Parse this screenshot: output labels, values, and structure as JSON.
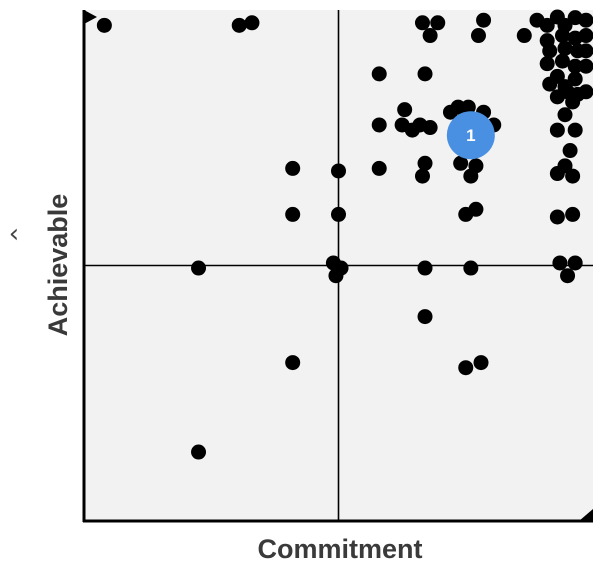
{
  "chart_data": {
    "type": "scatter",
    "xlabel": "Commitment",
    "ylabel": "Achievable",
    "xlim": [
      0,
      100
    ],
    "ylim": [
      0,
      100
    ],
    "quadrant_lines": {
      "x": 50,
      "y": 50
    },
    "y_expand_glyph": "‹",
    "colors": {
      "point": "#000000",
      "plot_background": "#f2f2f2",
      "axis": "#000000",
      "marker": "#4a90e2"
    },
    "highlight_marker": {
      "label": "1",
      "x": 76,
      "y": 75.5
    },
    "points": [
      [
        4,
        97
      ],
      [
        30.5,
        97
      ],
      [
        33,
        97.5
      ],
      [
        66.5,
        97.5
      ],
      [
        69.5,
        97.5
      ],
      [
        68,
        95
      ],
      [
        78.5,
        98
      ],
      [
        77.5,
        95
      ],
      [
        86.5,
        95
      ],
      [
        89,
        98
      ],
      [
        91,
        97
      ],
      [
        93,
        99
      ],
      [
        94.5,
        97
      ],
      [
        96.5,
        98.5
      ],
      [
        99,
        98
      ],
      [
        91,
        94
      ],
      [
        94,
        95
      ],
      [
        96.5,
        94.5
      ],
      [
        99,
        95
      ],
      [
        91.5,
        92
      ],
      [
        94.5,
        92.5
      ],
      [
        97,
        92
      ],
      [
        99,
        92
      ],
      [
        94,
        90
      ],
      [
        96.5,
        89
      ],
      [
        99,
        89
      ],
      [
        91,
        89.5
      ],
      [
        93,
        87
      ],
      [
        96.5,
        86.5
      ],
      [
        91.5,
        85.5
      ],
      [
        94.5,
        85
      ],
      [
        95,
        84
      ],
      [
        97,
        83.5
      ],
      [
        99,
        84
      ],
      [
        93,
        83
      ],
      [
        96,
        82
      ],
      [
        58,
        87.5
      ],
      [
        67,
        87.5
      ],
      [
        63,
        80.5
      ],
      [
        72,
        80
      ],
      [
        73.5,
        81
      ],
      [
        75.5,
        81
      ],
      [
        78.5,
        80
      ],
      [
        77,
        78.5
      ],
      [
        80.5,
        77.5
      ],
      [
        58,
        77.5
      ],
      [
        62.5,
        77.5
      ],
      [
        64.5,
        76.5
      ],
      [
        68,
        77
      ],
      [
        66,
        77.5
      ],
      [
        94.5,
        79.5
      ],
      [
        93,
        76.5
      ],
      [
        96.5,
        76.5
      ],
      [
        95.5,
        72.5
      ],
      [
        94.5,
        69.5
      ],
      [
        93,
        68
      ],
      [
        96,
        67.5
      ],
      [
        67,
        70
      ],
      [
        66.5,
        67.5
      ],
      [
        58,
        69
      ],
      [
        74,
        70
      ],
      [
        77,
        69.5
      ],
      [
        76,
        67.5
      ],
      [
        41,
        69
      ],
      [
        50,
        68.5
      ],
      [
        41,
        60
      ],
      [
        50,
        60
      ],
      [
        77,
        61
      ],
      [
        75,
        60
      ],
      [
        93,
        59.5
      ],
      [
        96,
        60
      ],
      [
        49,
        50.5
      ],
      [
        50.5,
        49.5
      ],
      [
        49.5,
        48
      ],
      [
        22.5,
        49.5
      ],
      [
        67,
        49.5
      ],
      [
        76,
        49.5
      ],
      [
        93.5,
        50.5
      ],
      [
        95,
        48
      ],
      [
        96.5,
        50.5
      ],
      [
        67,
        40
      ],
      [
        41,
        31
      ],
      [
        75,
        30
      ],
      [
        78,
        31
      ],
      [
        22.5,
        13.5
      ]
    ]
  }
}
